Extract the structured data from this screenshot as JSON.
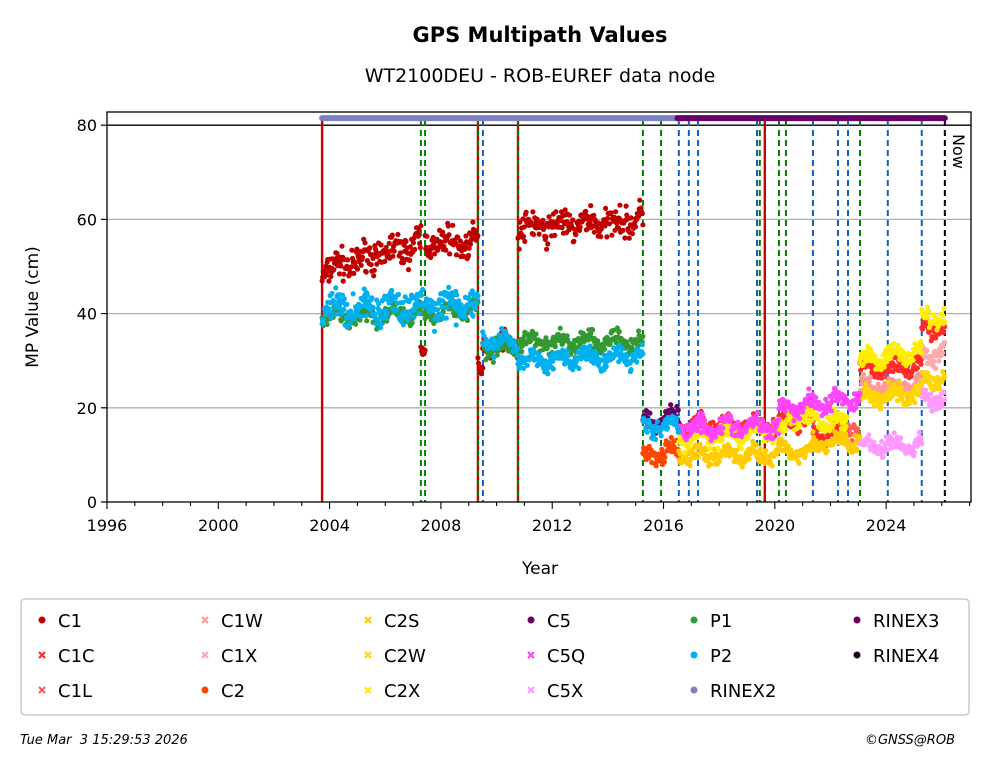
{
  "chart_data": {
    "type": "scatter",
    "title": "GPS Multipath Values",
    "subtitle": "WT2100DEU - ROB-EUREF data node",
    "xlabel": "Year",
    "ylabel": "MP Value (cm)",
    "xlim": [
      1996,
      2027.05
    ],
    "ylim": [
      0,
      82.8
    ],
    "xticks": [
      1996,
      2000,
      2004,
      2008,
      2012,
      2016,
      2020,
      2024
    ],
    "yticks": [
      0,
      20,
      40,
      60,
      80
    ],
    "grid": "horizontal",
    "now_label": "Now",
    "now_year": 2026.11,
    "legend_position": "below",
    "series": [
      {
        "name": "C1",
        "color": "#c00000",
        "marker": "circle",
        "segments": [
          [
            2003.73,
            2007.28,
            49,
            55
          ],
          [
            2007.28,
            2007.43,
            31,
            31
          ],
          [
            2007.43,
            2009.33,
            55,
            55
          ],
          [
            2009.33,
            2009.5,
            28,
            28
          ],
          [
            2009.5,
            2010.77,
            34,
            33
          ],
          [
            2010.77,
            2015.26,
            58,
            60
          ]
        ]
      },
      {
        "name": "C1C",
        "color": "#ff2a2a",
        "marker": "x",
        "segments": [
          [
            2016.55,
            2020.15,
            16,
            16
          ],
          [
            2020.15,
            2021.37,
            17,
            18
          ],
          [
            2021.37,
            2022.63,
            14,
            15
          ],
          [
            2023.06,
            2025.28,
            28,
            29
          ],
          [
            2025.28,
            2026.1,
            37,
            37
          ]
        ]
      },
      {
        "name": "C1L",
        "color": "#ff5c5c",
        "marker": "x",
        "segments": [
          [
            2022.27,
            2023.0,
            16,
            16
          ]
        ]
      },
      {
        "name": "C1W",
        "color": "#ff9999",
        "marker": "x",
        "segments": [
          [
            2023.06,
            2025.28,
            24,
            25
          ]
        ]
      },
      {
        "name": "C1X",
        "color": "#ffaaaa",
        "marker": "x",
        "segments": [
          [
            2025.28,
            2026.1,
            31,
            32
          ]
        ]
      },
      {
        "name": "C2",
        "color": "#ff4500",
        "marker": "circle",
        "segments": [
          [
            2015.26,
            2016.55,
            10,
            10.5
          ]
        ]
      },
      {
        "name": "C2S",
        "color": "#ffcc00",
        "marker": "x",
        "segments": [
          [
            2016.55,
            2020.15,
            10,
            10
          ],
          [
            2020.15,
            2021.37,
            11,
            11
          ],
          [
            2021.37,
            2023.06,
            12,
            13
          ]
        ]
      },
      {
        "name": "C2W",
        "color": "#ffd700",
        "marker": "x",
        "segments": [
          [
            2023.06,
            2025.28,
            22,
            23
          ],
          [
            2025.28,
            2026.1,
            26,
            26
          ]
        ]
      },
      {
        "name": "C2X",
        "color": "#ffee00",
        "marker": "x",
        "segments": [
          [
            2016.55,
            2020.4,
            14,
            15
          ],
          [
            2020.4,
            2022.6,
            18,
            17
          ],
          [
            2023.06,
            2025.28,
            30,
            32
          ],
          [
            2025.28,
            2026.1,
            39,
            39
          ]
        ]
      },
      {
        "name": "C5",
        "color": "#660066",
        "marker": "circle",
        "segments": [
          [
            2015.26,
            2016.55,
            17,
            18
          ]
        ]
      },
      {
        "name": "C5Q",
        "color": "#ff44ff",
        "marker": "x",
        "segments": [
          [
            2016.55,
            2020.15,
            16,
            16
          ],
          [
            2020.15,
            2023.06,
            20,
            22
          ]
        ]
      },
      {
        "name": "C5X",
        "color": "#ff99ff",
        "marker": "x",
        "segments": [
          [
            2023.06,
            2025.28,
            12,
            12
          ],
          [
            2025.28,
            2026.1,
            22,
            22
          ]
        ]
      },
      {
        "name": "P1",
        "color": "#339933",
        "marker": "circle",
        "segments": [
          [
            2003.73,
            2009.33,
            39,
            41
          ],
          [
            2009.5,
            2010.77,
            33,
            33
          ],
          [
            2010.77,
            2015.26,
            34,
            34
          ]
        ]
      },
      {
        "name": "P2",
        "color": "#00b0f0",
        "marker": "circle",
        "segments": [
          [
            2003.73,
            2009.33,
            41,
            42
          ],
          [
            2009.5,
            2010.77,
            34,
            34
          ],
          [
            2010.77,
            2015.26,
            30,
            31
          ],
          [
            2015.26,
            2016.55,
            16,
            16
          ]
        ]
      },
      {
        "name": "RINEX2",
        "color": "#8080c0",
        "marker": "circle",
        "bar": [
          2003.73,
          2016.5
        ]
      },
      {
        "name": "RINEX3",
        "color": "#660066",
        "marker": "circle",
        "bar": [
          2016.5,
          2026.11
        ]
      },
      {
        "name": "RINEX4",
        "color": "#220022",
        "marker": "circle"
      }
    ],
    "event_lines": [
      {
        "year": 2003.73,
        "type": "receiver",
        "color": "#008000",
        "style": "dashed"
      },
      {
        "year": 2003.73,
        "type": "antenna",
        "color": "#cc0000",
        "style": "solid"
      },
      {
        "year": 2007.28,
        "type": "receiver",
        "color": "#008000",
        "style": "dashed"
      },
      {
        "year": 2007.43,
        "type": "receiver",
        "color": "#008000",
        "style": "dashed"
      },
      {
        "year": 2009.33,
        "type": "antenna",
        "color": "#cc0000",
        "style": "solid"
      },
      {
        "year": 2009.33,
        "type": "receiver",
        "color": "#008000",
        "style": "dashed"
      },
      {
        "year": 2009.51,
        "type": "firmware",
        "color": "#1060c0",
        "style": "dashed"
      },
      {
        "year": 2010.77,
        "type": "antenna",
        "color": "#cc0000",
        "style": "solid"
      },
      {
        "year": 2010.77,
        "type": "receiver",
        "color": "#008000",
        "style": "dashed"
      },
      {
        "year": 2015.26,
        "type": "receiver",
        "color": "#008000",
        "style": "dashed"
      },
      {
        "year": 2015.91,
        "type": "receiver",
        "color": "#008000",
        "style": "dashed"
      },
      {
        "year": 2016.55,
        "type": "firmware",
        "color": "#1060c0",
        "style": "dashed"
      },
      {
        "year": 2016.91,
        "type": "firmware",
        "color": "#1060c0",
        "style": "dashed"
      },
      {
        "year": 2017.24,
        "type": "firmware",
        "color": "#1060c0",
        "style": "dashed"
      },
      {
        "year": 2019.36,
        "type": "firmware",
        "color": "#1060c0",
        "style": "dashed"
      },
      {
        "year": 2019.46,
        "type": "receiver",
        "color": "#008000",
        "style": "dashed"
      },
      {
        "year": 2019.64,
        "type": "antenna",
        "color": "#cc0000",
        "style": "solid"
      },
      {
        "year": 2020.15,
        "type": "receiver",
        "color": "#008000",
        "style": "dashed"
      },
      {
        "year": 2020.4,
        "type": "receiver",
        "color": "#008000",
        "style": "dashed"
      },
      {
        "year": 2021.37,
        "type": "firmware",
        "color": "#1060c0",
        "style": "dashed"
      },
      {
        "year": 2022.27,
        "type": "firmware",
        "color": "#1060c0",
        "style": "dashed"
      },
      {
        "year": 2022.63,
        "type": "firmware",
        "color": "#1060c0",
        "style": "dashed"
      },
      {
        "year": 2023.06,
        "type": "receiver",
        "color": "#008000",
        "style": "dashed"
      },
      {
        "year": 2024.06,
        "type": "firmware",
        "color": "#1060c0",
        "style": "dashed"
      },
      {
        "year": 2025.28,
        "type": "firmware",
        "color": "#1060c0",
        "style": "dashed"
      },
      {
        "year": 2026.11,
        "type": "now",
        "color": "#000000",
        "style": "dashed"
      }
    ]
  },
  "footer": {
    "timestamp": "Tue Mar  3 15:29:53 2026",
    "credit": "©GNSS@ROB"
  }
}
